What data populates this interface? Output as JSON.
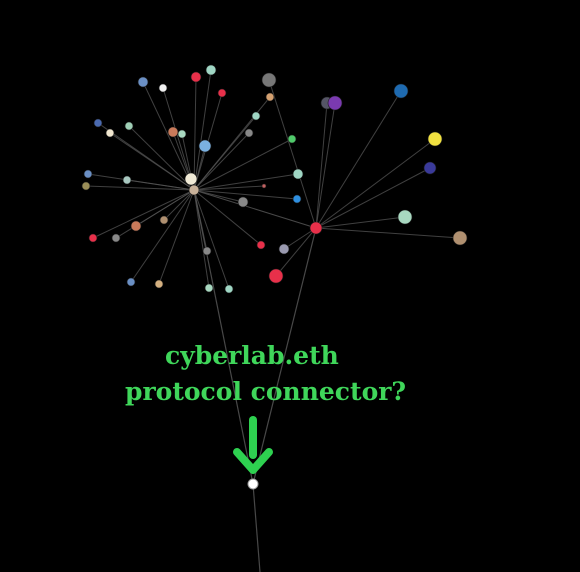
{
  "annotation": {
    "line1": "cyberlab.eth",
    "line2": "protocol connector?",
    "color": "#3fd65a",
    "arrow_color": "#2ed150"
  },
  "colors": {
    "background": "#000000",
    "edge": "#555555",
    "hub_a": "#c9b29a",
    "hub_b": "#e8304a",
    "connector": "#ffffff"
  },
  "graph": {
    "hubs": [
      {
        "id": "hub-a",
        "color": "#c9b29a"
      },
      {
        "id": "hub-b",
        "color": "#e8304a"
      }
    ],
    "connector": {
      "id": "cyberlab-eth",
      "color": "#ffffff"
    }
  }
}
